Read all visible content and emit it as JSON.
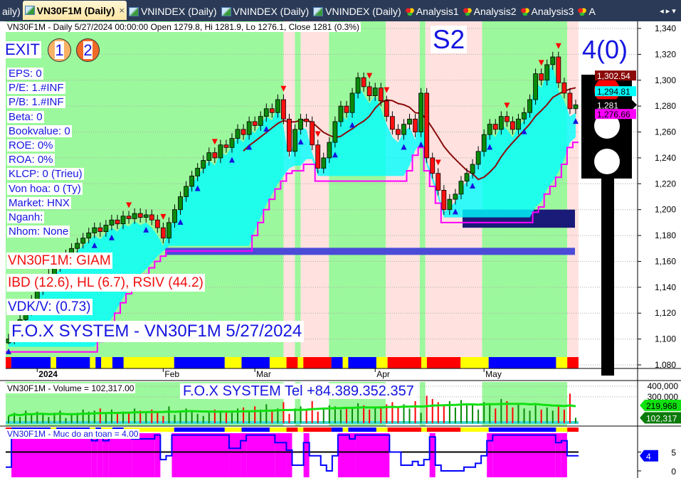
{
  "tabs": [
    {
      "label": "aily)",
      "icon": "none"
    },
    {
      "label": "VN30F1M (Daily)",
      "icon": "chart-icon",
      "active": true,
      "close": "×"
    },
    {
      "label": "VNINDEX (Daily)",
      "icon": "chart-icon"
    },
    {
      "label": "VNINDEX (Daily)",
      "icon": "chart-icon"
    },
    {
      "label": "VNINDEX (Daily)",
      "icon": "chart-icon"
    },
    {
      "label": "Analysis1",
      "icon": "analysis-icon"
    },
    {
      "label": "Analysis2",
      "icon": "analysis-icon"
    },
    {
      "label": "Analysis3",
      "icon": "analysis-icon"
    },
    {
      "label": "A",
      "icon": "analysis-icon"
    }
  ],
  "nav": {
    "arrows": "◂ ▸ ▾"
  },
  "header": "VN30F1M - Daily 5/27/2024 00:00:00 Open 1279.8, Hi 1281.9, Lo 1276.1, Close 1281 (0.3%)",
  "exit": {
    "label": "EXIT",
    "c1": "1",
    "c2": "2",
    "c1_color": "#f8b265",
    "c2_color": "#f06a28"
  },
  "info": [
    "EPS: 0",
    "P/E: 1.#INF",
    "P/B: 1.#INF",
    "Beta: 0",
    "Bookvalue: 0",
    "ROE: 0%",
    "ROA: 0%",
    "KLCP: 0 (Trieu)",
    "Von hoa: 0 (Ty)",
    "Market: HNX",
    "Nganh:",
    "Nhom: None"
  ],
  "signal": "VN30F1M: GIAM",
  "ibd": "IBD (12.6), HL (6.7), RSIV (44.2)",
  "vdk": "VDK/V:  (0.73)",
  "fox_title": "F.O.X SYSTEM - VN30F1M 5/27/2024",
  "stage": "S2",
  "light_label": "4(0)",
  "traffic_light": {
    "active": "red",
    "colors": [
      "#ff0000",
      "#ffffff",
      "#ffffff"
    ]
  },
  "price_axis": {
    "ticks": [
      "1,340",
      "1,320",
      "1,300",
      "1,280",
      "1,260",
      "1,240",
      "1,220",
      "1,200",
      "1,180",
      "1,160",
      "1,140",
      "1,120",
      "1,100",
      "1,080"
    ],
    "min": 1080,
    "max": 1340
  },
  "price_badges": [
    {
      "label": "1,302.54",
      "value": 1302.54,
      "bg": "#8b0a0a",
      "fg": "#ffffff"
    },
    {
      "label": "1,294.81",
      "value": 1294.81,
      "bg": "#00ffff",
      "fg": "#000000"
    },
    {
      "label": "1,281",
      "value": 1281,
      "bg": "#000000",
      "fg": "#ffffff"
    },
    {
      "label": "1,276.66",
      "value": 1276.66,
      "bg": "#ff00ff",
      "fg": "#000000"
    }
  ],
  "date_axis": [
    {
      "label": "2024",
      "bar": 5
    },
    {
      "label": "Feb",
      "bar": 27
    },
    {
      "label": "Mar",
      "bar": 43
    },
    {
      "label": "Apr",
      "bar": 64
    },
    {
      "label": "May",
      "bar": 83
    }
  ],
  "closes": [
    1100,
    1108,
    1115,
    1122,
    1130,
    1138,
    1145,
    1150,
    1156,
    1160,
    1165,
    1170,
    1174,
    1178,
    1182,
    1186,
    1183,
    1188,
    1192,
    1189,
    1195,
    1193,
    1197,
    1194,
    1196,
    1192,
    1186,
    1178,
    1190,
    1200,
    1210,
    1218,
    1226,
    1232,
    1238,
    1244,
    1240,
    1250,
    1248,
    1255,
    1262,
    1258,
    1268,
    1265,
    1272,
    1278,
    1275,
    1285,
    1270,
    1245,
    1262,
    1270,
    1268,
    1250,
    1232,
    1240,
    1252,
    1268,
    1280,
    1275,
    1290,
    1302,
    1295,
    1288,
    1294,
    1284,
    1272,
    1262,
    1258,
    1266,
    1270,
    1260,
    1290,
    1240,
    1228,
    1215,
    1200,
    1208,
    1212,
    1222,
    1228,
    1235,
    1245,
    1258,
    1266,
    1262,
    1272,
    1268,
    1262,
    1270,
    1275,
    1285,
    1305,
    1300,
    1312,
    1318,
    1298,
    1290,
    1278,
    1281
  ],
  "support_zones": [
    {
      "from": 1170.5,
      "to": 1165,
      "color": "#4b4bd8"
    },
    {
      "from": 1200,
      "to": 1186,
      "color": "#1a1a78"
    }
  ],
  "trend_bands": [
    {
      "trend": "up",
      "bars": 49
    },
    {
      "trend": "down",
      "bars": 2
    },
    {
      "trend": "up",
      "bars": 1
    },
    {
      "trend": "down",
      "bars": 5
    },
    {
      "trend": "up",
      "bars": 10
    },
    {
      "trend": "down",
      "bars": 6
    },
    {
      "trend": "up",
      "bars": 1
    },
    {
      "trend": "down",
      "bars": 10
    },
    {
      "trend": "up",
      "bars": 15
    },
    {
      "trend": "down",
      "bars": 2
    }
  ],
  "band_colors": {
    "up": "#9cf89c",
    "down": "#ffe2df"
  },
  "state_strip": [
    [
      "red",
      1
    ],
    [
      "blue",
      7
    ],
    [
      "yellow",
      1
    ],
    [
      "blue",
      6
    ],
    [
      "yellow",
      1
    ],
    [
      "blue",
      1
    ],
    [
      "yellow",
      2
    ],
    [
      "blue",
      2
    ],
    [
      "yellow",
      9
    ],
    [
      "blue",
      9
    ],
    [
      "yellow",
      3
    ],
    [
      "blue",
      5
    ],
    [
      "yellow",
      3
    ],
    [
      "red",
      2
    ],
    [
      "yellow",
      1
    ],
    [
      "red",
      5
    ],
    [
      "blue",
      2
    ],
    [
      "yellow",
      1
    ],
    [
      "blue",
      5
    ],
    [
      "yellow",
      2
    ],
    [
      "red",
      6
    ],
    [
      "yellow",
      1
    ],
    [
      "red",
      6
    ],
    [
      "yellow",
      5
    ],
    [
      "blue",
      12
    ],
    [
      "yellow",
      2
    ],
    [
      "red",
      2
    ]
  ],
  "strip_colors": {
    "red": "#ff0000",
    "blue": "#0000ff",
    "yellow": "#ffff00"
  },
  "volume": {
    "title": "VN30F1M - Volume = 102,317.00",
    "ticks": [
      "400,000",
      "300,000"
    ],
    "ma_label": "219,968",
    "ma_value": 219968,
    "last_label": "102,317",
    "last_value": 102317,
    "fox_tel": "F.O.X SYSTEM Tel +84.389.352.357",
    "values": [
      120,
      150,
      110,
      170,
      130,
      160,
      140,
      110,
      150,
      170,
      100,
      130,
      150,
      180,
      160,
      170,
      190,
      150,
      180,
      140,
      160,
      150,
      190,
      170,
      160,
      180,
      150,
      120,
      210,
      130,
      170,
      190,
      160,
      140,
      120,
      150,
      180,
      170,
      160,
      150,
      190,
      200,
      170,
      210,
      180,
      230,
      170,
      190,
      250,
      140,
      190,
      210,
      170,
      260,
      160,
      200,
      220,
      210,
      180,
      200,
      190,
      240,
      220,
      180,
      200,
      210,
      230,
      250,
      200,
      230,
      190,
      260,
      150,
      310,
      280,
      250,
      230,
      260,
      200,
      270,
      230,
      220,
      180,
      250,
      230,
      190,
      280,
      260,
      200,
      230,
      190,
      170,
      220,
      180,
      200,
      170,
      210,
      180,
      330,
      102.317
    ]
  },
  "safety": {
    "title": "VN30F1M - Muc do an toan = 4.00",
    "ticks": [
      "5",
      "0"
    ],
    "badge": "4",
    "value": 4,
    "segments": [
      [
        1,
        1
      ],
      [
        14,
        9.5
      ],
      [
        1,
        8
      ],
      [
        1,
        9.5
      ],
      [
        1,
        8
      ],
      [
        4,
        9.5
      ],
      [
        4,
        8.5
      ],
      [
        1,
        9.5
      ],
      [
        1,
        3
      ],
      [
        1,
        4
      ],
      [
        10,
        9.5
      ],
      [
        2,
        6
      ],
      [
        1,
        8
      ],
      [
        5,
        9.5
      ],
      [
        2,
        7.5
      ],
      [
        1,
        5.5
      ],
      [
        2,
        1.5
      ],
      [
        1,
        7.5
      ],
      [
        2,
        4
      ],
      [
        1,
        1.5
      ],
      [
        1,
        0
      ],
      [
        1,
        4
      ],
      [
        2,
        9.5
      ],
      [
        1,
        8.5
      ],
      [
        6,
        9.5
      ],
      [
        2,
        5
      ],
      [
        2,
        1.5
      ],
      [
        1,
        2.5
      ],
      [
        1,
        1.5
      ],
      [
        1,
        3
      ],
      [
        1,
        9
      ],
      [
        1,
        1.5
      ],
      [
        4,
        0
      ],
      [
        2,
        1
      ],
      [
        1,
        2
      ],
      [
        1,
        4
      ],
      [
        1,
        8
      ],
      [
        11,
        9.5
      ],
      [
        1,
        7.5
      ],
      [
        1,
        8
      ],
      [
        2,
        4
      ]
    ]
  }
}
